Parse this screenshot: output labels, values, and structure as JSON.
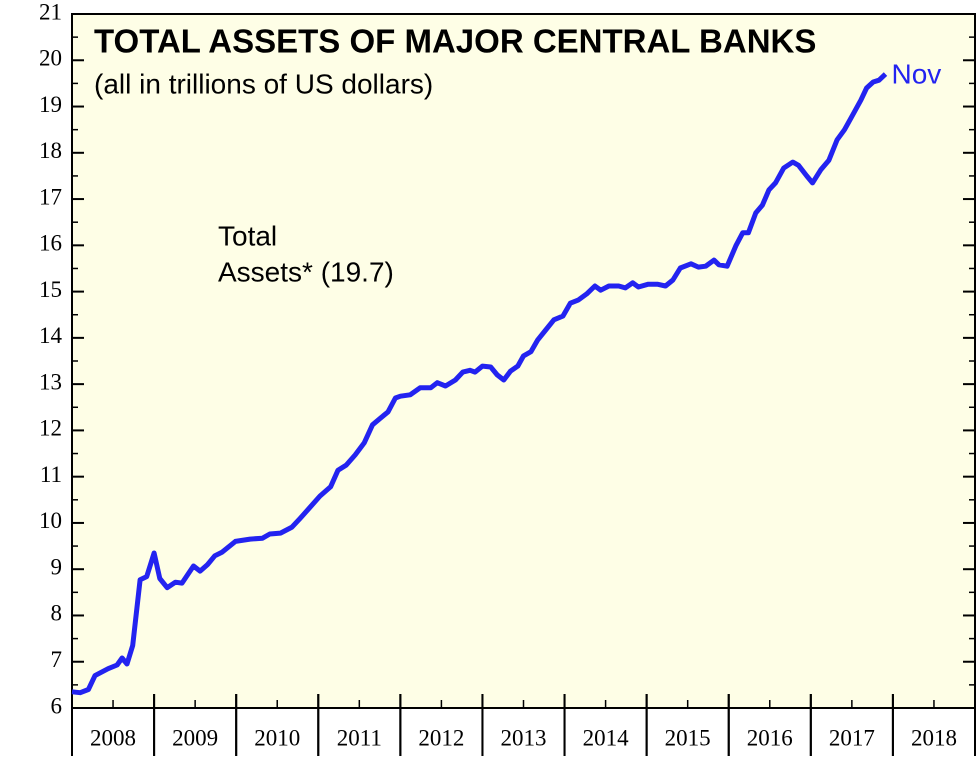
{
  "chart_data": {
    "type": "line",
    "title": "TOTAL ASSETS OF MAJOR CENTRAL BANKS",
    "subtitle": "(all in trillions of US dollars)",
    "annotations": [
      "Total",
      "Assets* (19.7)"
    ],
    "end_label": "Nov",
    "xlim": [
      2008,
      2019
    ],
    "xticks": [
      {
        "value": 2008.5,
        "label": "2008"
      },
      {
        "value": 2009.5,
        "label": "2009"
      },
      {
        "value": 2010.5,
        "label": "2010"
      },
      {
        "value": 2011.5,
        "label": "2011"
      },
      {
        "value": 2012.5,
        "label": "2012"
      },
      {
        "value": 2013.5,
        "label": "2013"
      },
      {
        "value": 2014.5,
        "label": "2014"
      },
      {
        "value": 2015.5,
        "label": "2015"
      },
      {
        "value": 2016.5,
        "label": "2016"
      },
      {
        "value": 2017.5,
        "label": "2017"
      },
      {
        "value": 2018.5,
        "label": "2018"
      }
    ],
    "ylim": [
      6,
      21
    ],
    "yticks": [
      6,
      7,
      8,
      9,
      10,
      11,
      12,
      13,
      14,
      15,
      16,
      17,
      18,
      19,
      20,
      21
    ],
    "series": [
      {
        "name": "Total Assets",
        "color": "#2323f0",
        "x": [
          2008.0,
          2008.1,
          2008.2,
          2008.28,
          2008.44,
          2008.55,
          2008.61,
          2008.67,
          2008.74,
          2008.83,
          2008.91,
          2009.0,
          2009.07,
          2009.16,
          2009.26,
          2009.34,
          2009.48,
          2009.56,
          2009.65,
          2009.74,
          2009.83,
          2009.99,
          2010.17,
          2010.32,
          2010.41,
          2010.54,
          2010.68,
          2010.78,
          2010.9,
          2011.02,
          2011.15,
          2011.24,
          2011.34,
          2011.45,
          2011.56,
          2011.66,
          2011.76,
          2011.85,
          2011.94,
          2012.0,
          2012.12,
          2012.24,
          2012.37,
          2012.45,
          2012.55,
          2012.67,
          2012.76,
          2012.85,
          2012.91,
          2013.0,
          2013.1,
          2013.18,
          2013.26,
          2013.34,
          2013.43,
          2013.5,
          2013.59,
          2013.67,
          2013.77,
          2013.87,
          2013.98,
          2014.07,
          2014.17,
          2014.27,
          2014.37,
          2014.44,
          2014.54,
          2014.66,
          2014.74,
          2014.83,
          2014.9,
          2015.02,
          2015.13,
          2015.23,
          2015.32,
          2015.41,
          2015.54,
          2015.63,
          2015.72,
          2015.82,
          2015.88,
          2015.98,
          2016.09,
          2016.17,
          2016.24,
          2016.33,
          2016.41,
          2016.49,
          2016.57,
          2016.67,
          2016.78,
          2016.85,
          2016.95,
          2017.02,
          2017.12,
          2017.22,
          2017.32,
          2017.41,
          2017.51,
          2017.61,
          2017.68,
          2017.76,
          2017.83,
          2017.91
        ],
        "values": [
          6.35,
          6.33,
          6.4,
          6.7,
          6.85,
          6.93,
          7.08,
          6.95,
          7.35,
          8.77,
          8.84,
          9.35,
          8.8,
          8.6,
          8.72,
          8.7,
          9.07,
          8.96,
          9.1,
          9.29,
          9.37,
          9.6,
          9.65,
          9.67,
          9.76,
          9.78,
          9.91,
          10.1,
          10.34,
          10.58,
          10.78,
          11.14,
          11.25,
          11.47,
          11.73,
          12.12,
          12.27,
          12.4,
          12.7,
          12.74,
          12.77,
          12.92,
          12.92,
          13.03,
          12.96,
          13.09,
          13.26,
          13.3,
          13.26,
          13.39,
          13.37,
          13.2,
          13.09,
          13.28,
          13.39,
          13.61,
          13.7,
          13.95,
          14.17,
          14.39,
          14.47,
          14.75,
          14.82,
          14.95,
          15.12,
          15.03,
          15.12,
          15.12,
          15.08,
          15.19,
          15.1,
          15.16,
          15.16,
          15.12,
          15.25,
          15.51,
          15.6,
          15.53,
          15.55,
          15.68,
          15.58,
          15.55,
          16.0,
          16.27,
          16.27,
          16.7,
          16.87,
          17.2,
          17.35,
          17.67,
          17.8,
          17.73,
          17.5,
          17.35,
          17.63,
          17.84,
          18.28,
          18.5,
          18.82,
          19.14,
          19.4,
          19.53,
          19.57,
          19.7
        ]
      }
    ]
  }
}
